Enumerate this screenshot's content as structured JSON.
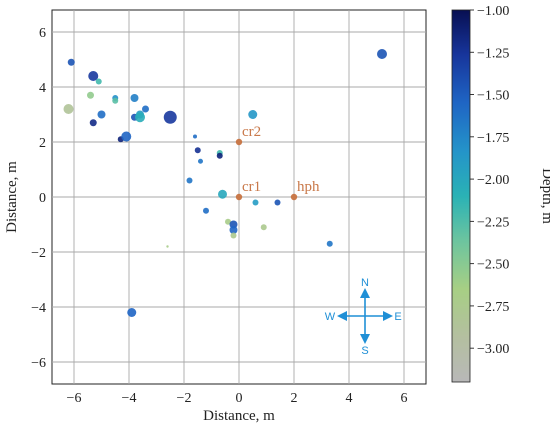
{
  "chart_data": {
    "type": "scatter",
    "title": "",
    "xlabel": "Distance, m",
    "ylabel": "Distance, m",
    "xlim": [
      -6.8,
      6.8
    ],
    "ylim": [
      -6.8,
      6.8
    ],
    "xticks": [
      "−6",
      "−4",
      "−2",
      "0",
      "2",
      "4",
      "6"
    ],
    "yticks": [
      "6",
      "4",
      "2",
      "0",
      "−2",
      "−4",
      "−6"
    ],
    "grid": true,
    "colorbar": {
      "label": "Depth, m",
      "range": [
        -3.2,
        -1.0
      ],
      "ticks": [
        "−1.00",
        "−1.25",
        "−1.50",
        "−1.75",
        "−2.00",
        "−2.25",
        "−2.50",
        "−2.75",
        "−3.00"
      ],
      "colormap": [
        "#080f52",
        "#17359b",
        "#1f65c4",
        "#2494c9",
        "#2ab2b5",
        "#6cc49f",
        "#a7cf84",
        "#b4bfa0",
        "#b8b8b8"
      ]
    },
    "stations": [
      {
        "name": "cr2",
        "x": 0,
        "y": 2
      },
      {
        "name": "cr1",
        "x": 0,
        "y": 0
      },
      {
        "name": "hph",
        "x": 2,
        "y": 0
      }
    ],
    "points": [
      {
        "x": -6.1,
        "y": 4.9,
        "depth": -1.45,
        "size": 3.5
      },
      {
        "x": -5.3,
        "y": 4.4,
        "depth": -1.3,
        "size": 5
      },
      {
        "x": -5.1,
        "y": 4.2,
        "depth": -2.2,
        "size": 3
      },
      {
        "x": -6.2,
        "y": 3.2,
        "depth": -2.85,
        "size": 5
      },
      {
        "x": -5.4,
        "y": 3.7,
        "depth": -2.55,
        "size": 3.5
      },
      {
        "x": -5.3,
        "y": 2.7,
        "depth": -1.2,
        "size": 3.5
      },
      {
        "x": -5.0,
        "y": 3.0,
        "depth": -1.6,
        "size": 4
      },
      {
        "x": -4.5,
        "y": 3.6,
        "depth": -1.8,
        "size": 3
      },
      {
        "x": -4.5,
        "y": 3.5,
        "depth": -2.3,
        "size": 3
      },
      {
        "x": -4.3,
        "y": 2.1,
        "depth": -1.15,
        "size": 3
      },
      {
        "x": -4.1,
        "y": 2.2,
        "depth": -1.55,
        "size": 5
      },
      {
        "x": -3.8,
        "y": 3.6,
        "depth": -1.7,
        "size": 4
      },
      {
        "x": -3.8,
        "y": 2.9,
        "depth": -1.45,
        "size": 3.5
      },
      {
        "x": -3.6,
        "y": 3.0,
        "depth": -1.9,
        "size": 4
      },
      {
        "x": -3.4,
        "y": 3.2,
        "depth": -1.6,
        "size": 3.5
      },
      {
        "x": -3.6,
        "y": 2.9,
        "depth": -2.05,
        "size": 5
      },
      {
        "x": -2.5,
        "y": 2.9,
        "depth": -1.3,
        "size": 6.5
      },
      {
        "x": -1.6,
        "y": 2.2,
        "depth": -1.6,
        "size": 2
      },
      {
        "x": -1.5,
        "y": 1.7,
        "depth": -1.25,
        "size": 3
      },
      {
        "x": -1.4,
        "y": 1.3,
        "depth": -1.65,
        "size": 2.5
      },
      {
        "x": -0.7,
        "y": 1.6,
        "depth": -2.2,
        "size": 3
      },
      {
        "x": -0.7,
        "y": 1.5,
        "depth": -1.15,
        "size": 3
      },
      {
        "x": -1.8,
        "y": 0.6,
        "depth": -1.65,
        "size": 3
      },
      {
        "x": -0.6,
        "y": 0.1,
        "depth": -2.0,
        "size": 4.5
      },
      {
        "x": 0.5,
        "y": 3.0,
        "depth": -1.85,
        "size": 4.5
      },
      {
        "x": 0.6,
        "y": -0.2,
        "depth": -1.9,
        "size": 3
      },
      {
        "x": 1.4,
        "y": -0.2,
        "depth": -1.45,
        "size": 3
      },
      {
        "x": -1.2,
        "y": -0.5,
        "depth": -1.6,
        "size": 3
      },
      {
        "x": -0.4,
        "y": -0.9,
        "depth": -2.7,
        "size": 3
      },
      {
        "x": -0.2,
        "y": -1.0,
        "depth": -1.45,
        "size": 4
      },
      {
        "x": -0.2,
        "y": -1.2,
        "depth": -1.55,
        "size": 4
      },
      {
        "x": -0.2,
        "y": -1.4,
        "depth": -2.75,
        "size": 3
      },
      {
        "x": 0.9,
        "y": -1.1,
        "depth": -2.75,
        "size": 3
      },
      {
        "x": -2.6,
        "y": -1.8,
        "depth": -2.7,
        "size": 1.2
      },
      {
        "x": 3.3,
        "y": -1.7,
        "depth": -1.65,
        "size": 3
      },
      {
        "x": -3.9,
        "y": -4.2,
        "depth": -1.55,
        "size": 4.5
      },
      {
        "x": 5.2,
        "y": 5.2,
        "depth": -1.45,
        "size": 5
      }
    ],
    "compass": {
      "north": "N",
      "south": "S",
      "east": "E",
      "west": "W"
    }
  }
}
